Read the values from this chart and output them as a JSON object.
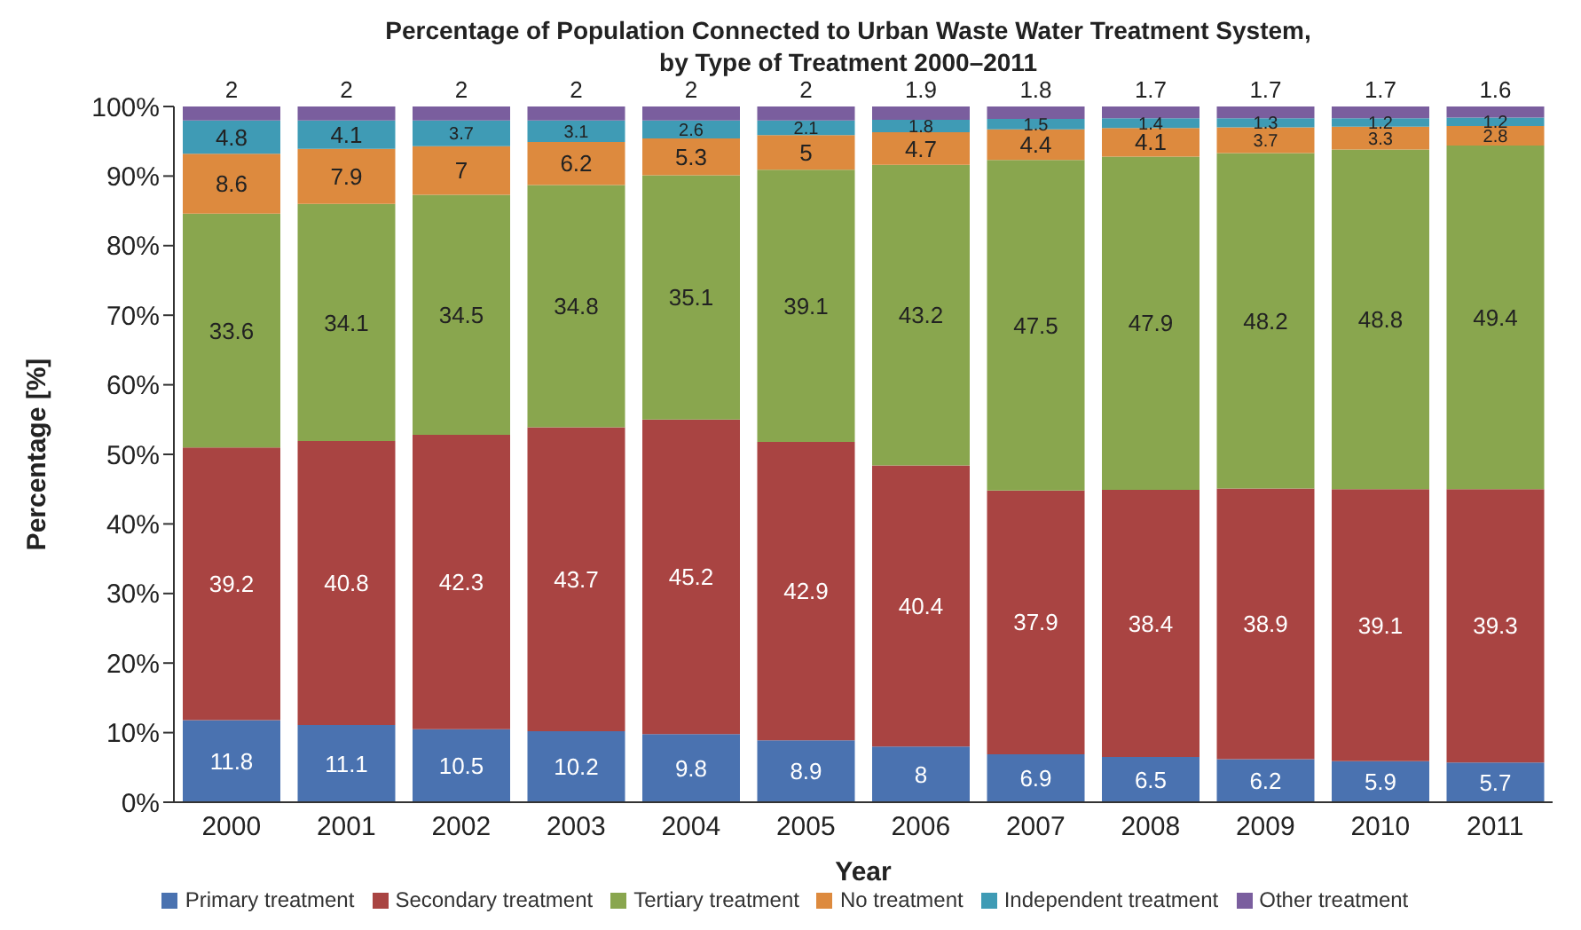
{
  "chart_data": {
    "type": "bar",
    "title": "Percentage of Population Connected to Urban Waste Water Treatment System, by Type of Treatment 2000–2011",
    "xlabel": "Year",
    "ylabel": "Percentage [%]",
    "categories": [
      "2000",
      "2001",
      "2002",
      "2003",
      "2004",
      "2005",
      "2006",
      "2007",
      "2008",
      "2009",
      "2010",
      "2011"
    ],
    "stacked": true,
    "data_labels": true,
    "legend": "bottom",
    "grid": false,
    "ylim": [
      0,
      100
    ],
    "yticks": [
      {
        "value": 0,
        "label": "0%"
      },
      {
        "value": 10,
        "label": "10%"
      },
      {
        "value": 20,
        "label": "20%"
      },
      {
        "value": 30,
        "label": "30%"
      },
      {
        "value": 40,
        "label": "40%"
      },
      {
        "value": 50,
        "label": "50%"
      },
      {
        "value": 60,
        "label": "60%"
      },
      {
        "value": 70,
        "label": "70%"
      },
      {
        "value": 80,
        "label": "80%"
      },
      {
        "value": 90,
        "label": "90%"
      },
      {
        "value": 100,
        "label": "100%"
      }
    ],
    "series": [
      {
        "name": "Primary treatment",
        "color": "#4a72b0",
        "values": [
          11.8,
          11.1,
          10.5,
          10.2,
          9.8,
          8.9,
          8,
          6.9,
          6.5,
          6.2,
          5.9,
          5.7
        ]
      },
      {
        "name": "Secondary treatment",
        "color": "#a94442",
        "values": [
          39.2,
          40.8,
          42.3,
          43.7,
          45.2,
          42.9,
          40.4,
          37.9,
          38.4,
          38.9,
          39.1,
          39.3
        ]
      },
      {
        "name": "Tertiary treatment",
        "color": "#89a64e",
        "values": [
          33.6,
          34.1,
          34.5,
          34.8,
          35.1,
          39.1,
          43.2,
          47.5,
          47.9,
          48.2,
          48.8,
          49.4
        ]
      },
      {
        "name": "No treatment",
        "color": "#dd8a3e",
        "values": [
          8.6,
          7.9,
          7,
          6.2,
          5.3,
          5,
          4.7,
          4.4,
          4.1,
          3.7,
          3.3,
          2.8
        ]
      },
      {
        "name": "Independent treatment",
        "color": "#3f9bb5",
        "values": [
          4.8,
          4.1,
          3.7,
          3.1,
          2.6,
          2.1,
          1.8,
          1.5,
          1.4,
          1.3,
          1.2,
          1.2
        ]
      },
      {
        "name": "Other treatment",
        "color": "#7a5e9e",
        "values": [
          2,
          2,
          2,
          2,
          2,
          2,
          1.9,
          1.8,
          1.7,
          1.7,
          1.7,
          1.6
        ]
      }
    ]
  }
}
